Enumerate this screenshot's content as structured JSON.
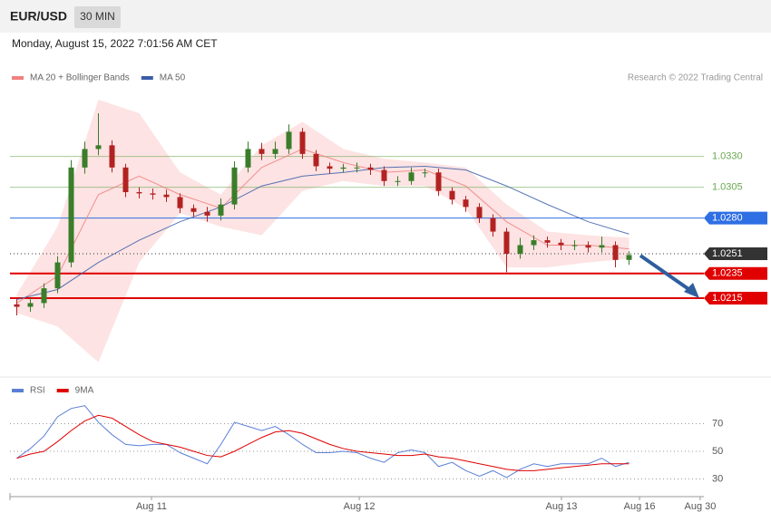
{
  "header": {
    "symbol": "EUR/USD",
    "interval": "30 MIN",
    "timestamp": "Monday, August 15, 2022 7:01:56 AM CET"
  },
  "chart_data": [
    {
      "type": "candlestick",
      "source": "Research © 2022 Trading Central",
      "up_color": "#3a7d2a",
      "down_color": "#b22222",
      "xlim": [
        0,
        51
      ],
      "ylim": [
        1.0155,
        1.0383
      ],
      "open": [
        1.021,
        1.0208,
        1.0211,
        1.0223,
        1.0244,
        1.0321,
        1.0336,
        1.0339,
        1.0321,
        1.0301,
        1.03,
        1.0299,
        1.0297,
        1.0288,
        1.0285,
        1.0282,
        1.0291,
        1.0321,
        1.0336,
        1.0332,
        1.0336,
        1.035,
        1.0332,
        1.0322,
        1.032,
        1.0321,
        1.0321,
        1.0319,
        1.031,
        1.031,
        1.0317,
        1.0317,
        1.0302,
        1.0295,
        1.0289,
        1.028,
        1.0269,
        1.0251,
        1.0258,
        1.0262,
        1.026,
        1.0258,
        1.0258,
        1.0256,
        1.0258,
        1.0246
      ],
      "high": [
        1.0214,
        1.0215,
        1.0227,
        1.0249,
        1.0327,
        1.0342,
        1.0365,
        1.0343,
        1.0324,
        1.0305,
        1.0304,
        1.0303,
        1.03,
        1.0291,
        1.0289,
        1.0296,
        1.0326,
        1.0342,
        1.0341,
        1.0342,
        1.0356,
        1.0353,
        1.0335,
        1.0325,
        1.0324,
        1.0325,
        1.0324,
        1.0322,
        1.0314,
        1.0321,
        1.032,
        1.032,
        1.0305,
        1.0298,
        1.0292,
        1.0283,
        1.0272,
        1.0264,
        1.0266,
        1.0265,
        1.0263,
        1.0262,
        1.0261,
        1.0265,
        1.0261,
        1.0253
      ],
      "low": [
        1.0201,
        1.0204,
        1.0207,
        1.0219,
        1.024,
        1.0316,
        1.0331,
        1.0317,
        1.0297,
        1.0296,
        1.0295,
        1.0293,
        1.0284,
        1.0281,
        1.0277,
        1.0278,
        1.0287,
        1.0317,
        1.0327,
        1.0328,
        1.0332,
        1.0328,
        1.0318,
        1.0316,
        1.0317,
        1.0317,
        1.0315,
        1.0306,
        1.0306,
        1.0307,
        1.0313,
        1.0298,
        1.0291,
        1.0285,
        1.0276,
        1.0265,
        1.0236,
        1.0247,
        1.0254,
        1.0256,
        1.0254,
        1.0254,
        1.0252,
        1.0252,
        1.024,
        1.0242
      ],
      "close": [
        1.0208,
        1.0211,
        1.0223,
        1.0244,
        1.0321,
        1.0336,
        1.0339,
        1.0321,
        1.0301,
        1.03,
        1.0299,
        1.0297,
        1.0288,
        1.0285,
        1.0282,
        1.0291,
        1.0321,
        1.0336,
        1.0332,
        1.0336,
        1.035,
        1.0332,
        1.0322,
        1.032,
        1.0321,
        1.0321,
        1.0319,
        1.031,
        1.031,
        1.0317,
        1.0317,
        1.0302,
        1.0295,
        1.0289,
        1.028,
        1.0269,
        1.0251,
        1.0258,
        1.0262,
        1.026,
        1.0258,
        1.0258,
        1.0256,
        1.0258,
        1.0246,
        1.025
      ],
      "series": [
        {
          "name": "MA 20 + Bollinger Bands",
          "color": "#f08080",
          "fill": "#fde3e3",
          "x": [
            0.5,
            3.5,
            6.5,
            9.5,
            12.5,
            15.5,
            18.5,
            21.5,
            24.5,
            27.5,
            30.5,
            33.5,
            36.5,
            39.5,
            42.5,
            45.5
          ],
          "values": [
            1.0211,
            1.0233,
            1.0299,
            1.0314,
            1.0299,
            1.0288,
            1.0321,
            1.0336,
            1.0325,
            1.0317,
            1.0319,
            1.0306,
            1.0277,
            1.0258,
            1.0258,
            1.0255
          ],
          "upper": [
            1.0218,
            1.0273,
            1.0376,
            1.0365,
            1.0317,
            1.0299,
            1.0339,
            1.0358,
            1.0336,
            1.0328,
            1.0325,
            1.0321,
            1.0291,
            1.0269,
            1.0266,
            1.0264
          ],
          "lower": [
            1.0203,
            1.0192,
            1.0163,
            1.0244,
            1.0284,
            1.0273,
            1.0266,
            1.0302,
            1.031,
            1.0306,
            1.0306,
            1.0288,
            1.024,
            1.024,
            1.0244,
            1.0247
          ]
        },
        {
          "name": "MA 50",
          "color": "#3a5ea8",
          "x": [
            0.5,
            3.5,
            6.5,
            9.5,
            12.5,
            15.5,
            18.5,
            21.5,
            24.5,
            27.5,
            30.5,
            33.5,
            36.5,
            39.5,
            42.5,
            45.5
          ],
          "values": [
            1.0214,
            1.0222,
            1.0244,
            1.0262,
            1.0277,
            1.0289,
            1.0306,
            1.0314,
            1.0317,
            1.0321,
            1.0322,
            1.0319,
            1.0306,
            1.0291,
            1.0277,
            1.0267
          ]
        }
      ],
      "levels": [
        {
          "value": 1.033,
          "label": "1.0330",
          "color": "#6aa84f",
          "style": "thin"
        },
        {
          "value": 1.0305,
          "label": "1.0305",
          "color": "#6aa84f",
          "style": "thin"
        },
        {
          "value": 1.028,
          "label": "1.0280",
          "color": "#2f6fe4",
          "style": "box"
        },
        {
          "value": 1.0251,
          "label": "1.0251",
          "color": "#333333",
          "style": "dotted"
        },
        {
          "value": 1.0235,
          "label": "1.0235",
          "color": "#e00000",
          "style": "thick"
        },
        {
          "value": 1.0215,
          "label": "1.0215",
          "color": "#e00000",
          "style": "thick"
        }
      ]
    },
    {
      "type": "line",
      "xlim": [
        0,
        51
      ],
      "ylim": [
        19,
        88
      ],
      "yticks": [
        30,
        50,
        70
      ],
      "grid": true,
      "xticks": [
        {
          "value": 10.4,
          "label": "Aug 11"
        },
        {
          "value": 25.67,
          "label": "Aug 12"
        },
        {
          "value": 40.53,
          "label": "Aug 13"
        },
        {
          "value": 46.27,
          "label": "Aug 16"
        },
        {
          "value": 50.73,
          "label": "Aug 30"
        }
      ],
      "series": [
        {
          "name": "RSI",
          "color": "#5b7fd6",
          "values": [
            45,
            52,
            61,
            75,
            81,
            83,
            71,
            62,
            55,
            54,
            55,
            55,
            49,
            45,
            41,
            55,
            71,
            68,
            65,
            68,
            62,
            55,
            49,
            49,
            50,
            49,
            45,
            42,
            49,
            51,
            49,
            39,
            42,
            36,
            32,
            36,
            31,
            37,
            41,
            39,
            41,
            41,
            41,
            45,
            39,
            42
          ]
        },
        {
          "name": "9MA",
          "color": "#e00000",
          "values": [
            45,
            48,
            50,
            57,
            65,
            72,
            76,
            74,
            68,
            62,
            57,
            55,
            53,
            50,
            47,
            46,
            50,
            55,
            60,
            64,
            65,
            63,
            59,
            55,
            52,
            50,
            49,
            48,
            47,
            47,
            48,
            46,
            45,
            43,
            41,
            39,
            37,
            36,
            36,
            37,
            38,
            39,
            40,
            41,
            41,
            41
          ]
        }
      ]
    }
  ]
}
